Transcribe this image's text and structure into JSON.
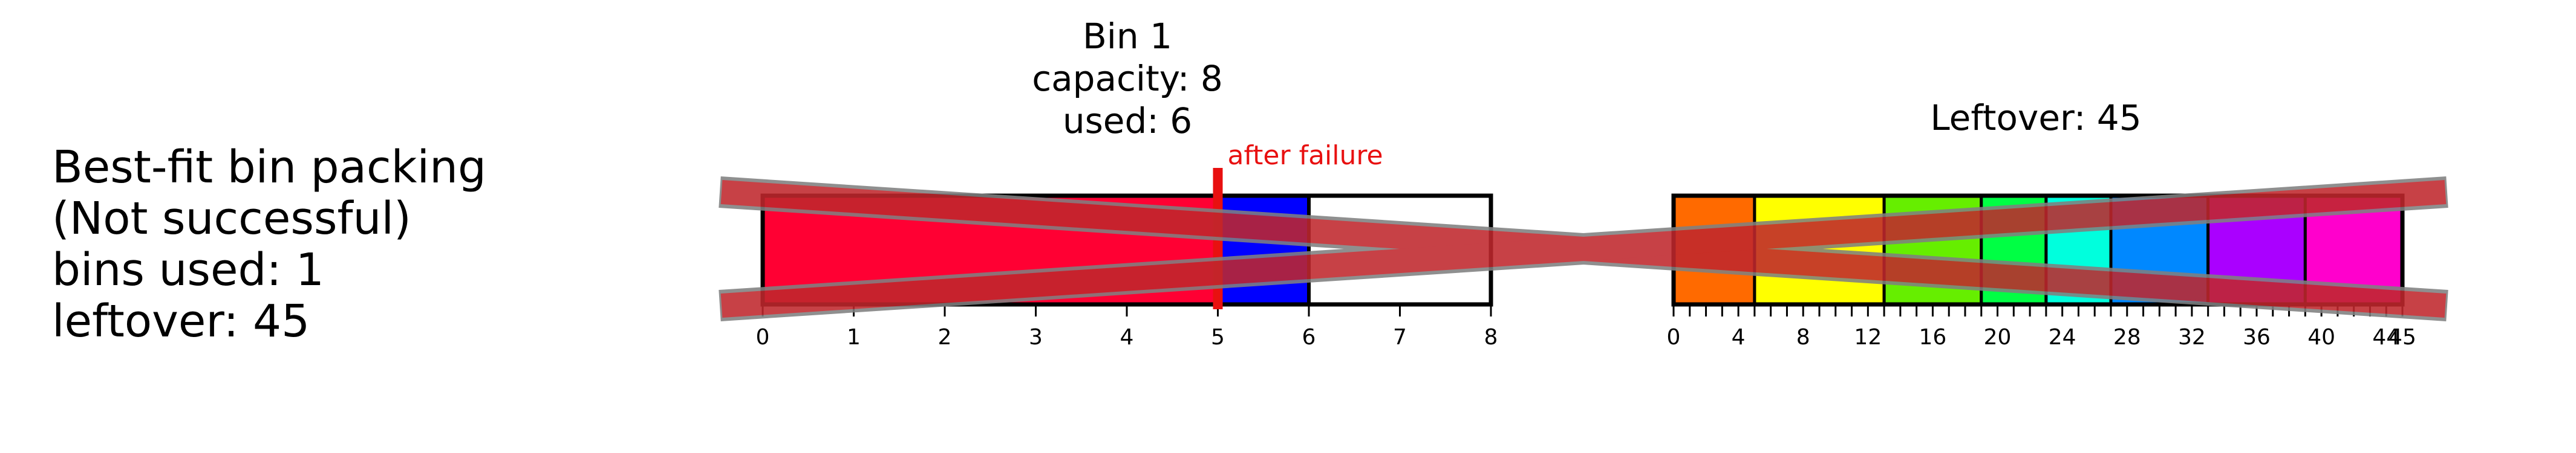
{
  "summary": {
    "lines": [
      "Best-fit bin packing",
      "(Not successful)",
      "bins used: 1",
      "leftover: 45"
    ]
  },
  "bin": {
    "title_lines": [
      "Bin 1",
      "capacity: 8",
      "used: 6"
    ],
    "capacity": 8,
    "items": [
      {
        "start": 0,
        "end": 5,
        "color": "#ff0033"
      },
      {
        "start": 5,
        "end": 6,
        "color": "#0000ff"
      }
    ],
    "ticks": [
      "0",
      "1",
      "2",
      "3",
      "4",
      "5",
      "6",
      "7",
      "8"
    ],
    "failure_at": 5,
    "failure_label": "after failure",
    "failure_color": "#e81010"
  },
  "leftover": {
    "title": "Leftover: 45",
    "total": 45,
    "segments": [
      {
        "start": 0,
        "end": 5,
        "color": "#ff6a00"
      },
      {
        "start": 5,
        "end": 13,
        "color": "#ffff00"
      },
      {
        "start": 13,
        "end": 19,
        "color": "#66ee00"
      },
      {
        "start": 19,
        "end": 23,
        "color": "#00ff44"
      },
      {
        "start": 23,
        "end": 27,
        "color": "#00ffdd"
      },
      {
        "start": 27,
        "end": 33,
        "color": "#0088ff"
      },
      {
        "start": 33,
        "end": 39,
        "color": "#aa00ff"
      },
      {
        "start": 39,
        "end": 45,
        "color": "#ff00cc"
      }
    ],
    "tick_labels": [
      "0",
      "4",
      "8",
      "12",
      "16",
      "20",
      "24",
      "28",
      "32",
      "36",
      "40",
      "44",
      "45"
    ]
  },
  "failure_cross": {
    "color": "#c0272d",
    "outline": "#808080"
  }
}
